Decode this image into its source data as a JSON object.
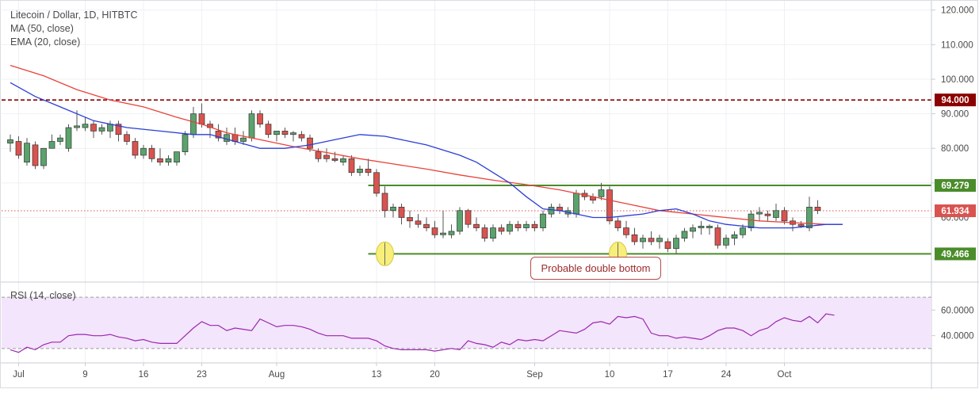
{
  "chart_data": {
    "type": "candlestick",
    "title": "Litecoin / Dollar, 1D, HITBTC",
    "indicators": [
      "MA (50, close)",
      "EMA (20, close)"
    ],
    "colors": {
      "up": "#5aa36c",
      "down": "#d9534f",
      "ma50": "#e8433a",
      "ema20": "#2a3ed6",
      "resistance_line": "#4a8c2a",
      "support_line": "#4a8c2a",
      "level_94": "#8b0000",
      "last_price": "#d9534f",
      "rsi_line": "#9c27b0",
      "rsi_band": "#f3e5fb",
      "highlight": "#f7ef7a"
    },
    "price_axis": {
      "ylim": [
        42,
        122
      ],
      "ticks": [
        120,
        110,
        100,
        90,
        80,
        70,
        60
      ],
      "tick_labels": [
        "120.000",
        "110.000",
        "100.000",
        "90.000",
        "80.000",
        "70.000",
        "60.000"
      ]
    },
    "x_axis": {
      "ticks": [
        {
          "label": "Jul",
          "day": 1
        },
        {
          "label": "9",
          "day": 9
        },
        {
          "label": "16",
          "day": 16
        },
        {
          "label": "23",
          "day": 23
        },
        {
          "label": "Aug",
          "day": 32
        },
        {
          "label": "13",
          "day": 44
        },
        {
          "label": "20",
          "day": 51
        },
        {
          "label": "Sep",
          "day": 63
        },
        {
          "label": "10",
          "day": 72
        },
        {
          "label": "17",
          "day": 79
        },
        {
          "label": "24",
          "day": 86
        },
        {
          "label": "Oct",
          "day": 93
        }
      ]
    },
    "levels": [
      {
        "value": 94.0,
        "label": "94.000",
        "style": "dashed",
        "color_key": "level_94"
      },
      {
        "value": 69.279,
        "label": "69.279",
        "style": "solid",
        "color_key": "resistance_line",
        "from_day": 43
      },
      {
        "value": 49.466,
        "label": "49.466",
        "style": "solid",
        "color_key": "support_line",
        "from_day": 43
      },
      {
        "value": 61.934,
        "label": "61.934",
        "style": "dotted",
        "color_key": "last_price"
      }
    ],
    "annotation_text": "Probable double bottom",
    "double_bottom_days": [
      45,
      73
    ],
    "candles": [
      {
        "o": 81.5,
        "h": 84,
        "l": 79,
        "c": 82.5
      },
      {
        "o": 82,
        "h": 83.5,
        "l": 77,
        "c": 78
      },
      {
        "o": 76,
        "h": 83,
        "l": 75,
        "c": 81.5
      },
      {
        "o": 81,
        "h": 82,
        "l": 74,
        "c": 75
      },
      {
        "o": 75,
        "h": 80,
        "l": 74,
        "c": 80
      },
      {
        "o": 80,
        "h": 84,
        "l": 80,
        "c": 82
      },
      {
        "o": 82,
        "h": 84,
        "l": 81,
        "c": 83
      },
      {
        "o": 80,
        "h": 87,
        "l": 79,
        "c": 86
      },
      {
        "o": 86,
        "h": 91,
        "l": 85,
        "c": 86.5
      },
      {
        "o": 86,
        "h": 89,
        "l": 85,
        "c": 87
      },
      {
        "o": 87,
        "h": 88,
        "l": 83,
        "c": 85
      },
      {
        "o": 85,
        "h": 87,
        "l": 84,
        "c": 86
      },
      {
        "o": 85,
        "h": 88,
        "l": 83,
        "c": 87
      },
      {
        "o": 87,
        "h": 88,
        "l": 82,
        "c": 84
      },
      {
        "o": 84,
        "h": 85,
        "l": 81,
        "c": 82
      },
      {
        "o": 82,
        "h": 83,
        "l": 77,
        "c": 78
      },
      {
        "o": 78,
        "h": 81,
        "l": 77,
        "c": 80
      },
      {
        "o": 80,
        "h": 81,
        "l": 76,
        "c": 77
      },
      {
        "o": 77,
        "h": 80,
        "l": 75,
        "c": 76
      },
      {
        "o": 76,
        "h": 78,
        "l": 75,
        "c": 77
      },
      {
        "o": 76,
        "h": 79,
        "l": 75,
        "c": 79
      },
      {
        "o": 79,
        "h": 85,
        "l": 78,
        "c": 84
      },
      {
        "o": 84,
        "h": 92,
        "l": 83,
        "c": 90
      },
      {
        "o": 90,
        "h": 93,
        "l": 86,
        "c": 87
      },
      {
        "o": 87,
        "h": 88,
        "l": 83,
        "c": 86
      },
      {
        "o": 85,
        "h": 87,
        "l": 82,
        "c": 83
      },
      {
        "o": 82,
        "h": 86,
        "l": 81,
        "c": 84
      },
      {
        "o": 84,
        "h": 86,
        "l": 81,
        "c": 82
      },
      {
        "o": 82,
        "h": 85,
        "l": 81,
        "c": 83
      },
      {
        "o": 83,
        "h": 91,
        "l": 82,
        "c": 90
      },
      {
        "o": 90,
        "h": 91,
        "l": 86,
        "c": 87
      },
      {
        "o": 87,
        "h": 88,
        "l": 83,
        "c": 84
      },
      {
        "o": 84,
        "h": 85,
        "l": 82,
        "c": 85
      },
      {
        "o": 85,
        "h": 86,
        "l": 83,
        "c": 84
      },
      {
        "o": 84,
        "h": 85,
        "l": 82,
        "c": 84.5
      },
      {
        "o": 84,
        "h": 85,
        "l": 82,
        "c": 83
      },
      {
        "o": 83,
        "h": 84,
        "l": 79,
        "c": 80
      },
      {
        "o": 79,
        "h": 80,
        "l": 76,
        "c": 77
      },
      {
        "o": 78,
        "h": 80,
        "l": 76,
        "c": 77
      },
      {
        "o": 77,
        "h": 79,
        "l": 76,
        "c": 76.5
      },
      {
        "o": 76,
        "h": 78,
        "l": 75,
        "c": 77
      },
      {
        "o": 77,
        "h": 78,
        "l": 72,
        "c": 73
      },
      {
        "o": 73,
        "h": 75,
        "l": 72,
        "c": 74
      },
      {
        "o": 74,
        "h": 77,
        "l": 72,
        "c": 73
      },
      {
        "o": 73,
        "h": 74,
        "l": 66,
        "c": 67
      },
      {
        "o": 67,
        "h": 69,
        "l": 60,
        "c": 62
      },
      {
        "o": 62,
        "h": 64,
        "l": 60,
        "c": 63
      },
      {
        "o": 63,
        "h": 64,
        "l": 58,
        "c": 60
      },
      {
        "o": 60,
        "h": 62,
        "l": 57,
        "c": 59
      },
      {
        "o": 59,
        "h": 61,
        "l": 57,
        "c": 58
      },
      {
        "o": 58,
        "h": 60,
        "l": 56,
        "c": 57
      },
      {
        "o": 57,
        "h": 59,
        "l": 54,
        "c": 55
      },
      {
        "o": 55,
        "h": 62,
        "l": 54,
        "c": 55.5
      },
      {
        "o": 55,
        "h": 58,
        "l": 54,
        "c": 56
      },
      {
        "o": 56,
        "h": 63,
        "l": 55,
        "c": 62
      },
      {
        "o": 62,
        "h": 62.5,
        "l": 57,
        "c": 58
      },
      {
        "o": 58,
        "h": 60,
        "l": 56,
        "c": 57
      },
      {
        "o": 57,
        "h": 58,
        "l": 53,
        "c": 54
      },
      {
        "o": 54,
        "h": 58,
        "l": 53,
        "c": 57
      },
      {
        "o": 57,
        "h": 58,
        "l": 55,
        "c": 56
      },
      {
        "o": 56,
        "h": 59,
        "l": 55,
        "c": 58
      },
      {
        "o": 58,
        "h": 59,
        "l": 56,
        "c": 57
      },
      {
        "o": 57,
        "h": 59,
        "l": 56,
        "c": 58
      },
      {
        "o": 58,
        "h": 59,
        "l": 56,
        "c": 57
      },
      {
        "o": 57,
        "h": 62,
        "l": 56,
        "c": 61
      },
      {
        "o": 61,
        "h": 64,
        "l": 60,
        "c": 63
      },
      {
        "o": 63,
        "h": 64,
        "l": 61,
        "c": 62
      },
      {
        "o": 61,
        "h": 63,
        "l": 60,
        "c": 62
      },
      {
        "o": 61,
        "h": 68,
        "l": 60,
        "c": 67
      },
      {
        "o": 67,
        "h": 68,
        "l": 65,
        "c": 66
      },
      {
        "o": 66,
        "h": 67,
        "l": 64,
        "c": 65
      },
      {
        "o": 66,
        "h": 70,
        "l": 65,
        "c": 68
      },
      {
        "o": 68,
        "h": 69,
        "l": 58,
        "c": 59
      },
      {
        "o": 59,
        "h": 60,
        "l": 56,
        "c": 57
      },
      {
        "o": 57,
        "h": 59,
        "l": 54,
        "c": 55
      },
      {
        "o": 55,
        "h": 57,
        "l": 52,
        "c": 53
      },
      {
        "o": 53,
        "h": 55,
        "l": 51,
        "c": 54
      },
      {
        "o": 54,
        "h": 56,
        "l": 52,
        "c": 53
      },
      {
        "o": 53,
        "h": 55,
        "l": 51,
        "c": 54
      },
      {
        "o": 53,
        "h": 54,
        "l": 50,
        "c": 51
      },
      {
        "o": 51,
        "h": 55,
        "l": 49.5,
        "c": 54
      },
      {
        "o": 54,
        "h": 57,
        "l": 53,
        "c": 56
      },
      {
        "o": 56,
        "h": 58,
        "l": 54,
        "c": 57
      },
      {
        "o": 57,
        "h": 59,
        "l": 55,
        "c": 57.5
      },
      {
        "o": 57,
        "h": 58,
        "l": 55,
        "c": 57.5
      },
      {
        "o": 57,
        "h": 58,
        "l": 51,
        "c": 52
      },
      {
        "o": 52,
        "h": 55,
        "l": 51,
        "c": 54
      },
      {
        "o": 54,
        "h": 56,
        "l": 52,
        "c": 55
      },
      {
        "o": 55,
        "h": 58,
        "l": 54,
        "c": 57
      },
      {
        "o": 57,
        "h": 62,
        "l": 56,
        "c": 61
      },
      {
        "o": 61,
        "h": 63,
        "l": 59,
        "c": 61.5
      },
      {
        "o": 61,
        "h": 62,
        "l": 59,
        "c": 60.5
      },
      {
        "o": 60,
        "h": 64,
        "l": 59,
        "c": 62
      },
      {
        "o": 62,
        "h": 63,
        "l": 58,
        "c": 59
      },
      {
        "o": 59,
        "h": 60,
        "l": 56,
        "c": 58
      },
      {
        "o": 58,
        "h": 59,
        "l": 57,
        "c": 57.5
      },
      {
        "o": 57,
        "h": 66,
        "l": 56,
        "c": 63
      },
      {
        "o": 63,
        "h": 65,
        "l": 61,
        "c": 62
      }
    ],
    "ma50": [
      [
        0,
        104
      ],
      [
        4,
        101
      ],
      [
        8,
        97
      ],
      [
        12,
        94
      ],
      [
        16,
        92
      ],
      [
        20,
        89
      ],
      [
        23,
        87
      ],
      [
        26,
        84.5
      ],
      [
        30,
        82.5
      ],
      [
        34,
        80.5
      ],
      [
        38,
        78.8
      ],
      [
        42,
        77
      ],
      [
        46,
        75.5
      ],
      [
        50,
        74
      ],
      [
        54,
        72.3
      ],
      [
        58,
        70.8
      ],
      [
        62,
        69.5
      ],
      [
        66,
        68
      ],
      [
        70,
        66
      ],
      [
        74,
        64
      ],
      [
        78,
        62
      ],
      [
        82,
        61
      ],
      [
        86,
        60
      ],
      [
        90,
        59
      ],
      [
        94,
        58.5
      ],
      [
        98,
        58
      ],
      [
        100,
        58
      ]
    ],
    "ema20": [
      [
        0,
        99
      ],
      [
        3,
        95
      ],
      [
        6,
        92
      ],
      [
        10,
        88
      ],
      [
        14,
        86
      ],
      [
        18,
        85
      ],
      [
        22,
        84
      ],
      [
        24,
        84
      ],
      [
        27,
        82
      ],
      [
        30,
        80
      ],
      [
        33,
        80
      ],
      [
        36,
        81
      ],
      [
        39,
        82.5
      ],
      [
        42,
        84
      ],
      [
        45,
        83.5
      ],
      [
        48,
        82
      ],
      [
        50,
        81
      ],
      [
        52,
        79.5
      ],
      [
        54,
        78
      ],
      [
        56,
        76
      ],
      [
        58,
        73
      ],
      [
        60,
        70
      ],
      [
        62,
        66
      ],
      [
        64,
        62.5
      ],
      [
        66,
        62
      ],
      [
        68,
        61
      ],
      [
        70,
        60
      ],
      [
        72,
        60
      ],
      [
        74,
        60.5
      ],
      [
        76,
        61
      ],
      [
        78,
        62
      ],
      [
        80,
        62.5
      ],
      [
        82,
        61
      ],
      [
        84,
        59
      ],
      [
        86,
        58
      ],
      [
        88,
        57.5
      ],
      [
        90,
        57
      ],
      [
        92,
        57
      ],
      [
        94,
        57
      ],
      [
        96,
        57.5
      ],
      [
        98,
        58
      ],
      [
        100,
        58
      ]
    ],
    "rsi": {
      "title": "RSI (14, close)",
      "ylim": [
        20,
        80
      ],
      "ticks": [
        60,
        40
      ],
      "tick_labels": [
        "60.0000",
        "40.0000"
      ],
      "band": [
        30,
        70
      ],
      "values": [
        [
          0,
          29
        ],
        [
          1,
          27
        ],
        [
          2,
          31
        ],
        [
          3,
          29
        ],
        [
          4,
          33
        ],
        [
          5,
          35
        ],
        [
          6,
          35
        ],
        [
          7,
          40
        ],
        [
          8,
          41
        ],
        [
          9,
          41
        ],
        [
          10,
          40
        ],
        [
          11,
          40
        ],
        [
          12,
          41
        ],
        [
          13,
          39
        ],
        [
          14,
          38
        ],
        [
          15,
          36
        ],
        [
          16,
          37
        ],
        [
          17,
          35
        ],
        [
          18,
          34
        ],
        [
          19,
          34
        ],
        [
          20,
          34
        ],
        [
          21,
          40
        ],
        [
          22,
          46
        ],
        [
          23,
          51
        ],
        [
          24,
          48
        ],
        [
          25,
          48
        ],
        [
          26,
          44
        ],
        [
          27,
          46
        ],
        [
          28,
          45
        ],
        [
          29,
          44
        ],
        [
          30,
          53
        ],
        [
          31,
          50
        ],
        [
          32,
          47
        ],
        [
          33,
          48
        ],
        [
          34,
          48
        ],
        [
          35,
          47
        ],
        [
          36,
          45
        ],
        [
          37,
          42
        ],
        [
          38,
          40
        ],
        [
          39,
          40
        ],
        [
          40,
          40
        ],
        [
          41,
          38
        ],
        [
          42,
          38
        ],
        [
          43,
          38
        ],
        [
          44,
          36
        ],
        [
          45,
          32
        ],
        [
          46,
          30
        ],
        [
          47,
          29
        ],
        [
          48,
          29
        ],
        [
          49,
          29
        ],
        [
          50,
          29
        ],
        [
          51,
          28
        ],
        [
          52,
          29
        ],
        [
          53,
          30
        ],
        [
          54,
          29
        ],
        [
          55,
          36
        ],
        [
          56,
          34
        ],
        [
          57,
          33
        ],
        [
          58,
          31
        ],
        [
          59,
          35
        ],
        [
          60,
          33
        ],
        [
          61,
          37
        ],
        [
          62,
          36
        ],
        [
          63,
          37
        ],
        [
          64,
          36
        ],
        [
          65,
          40
        ],
        [
          66,
          44
        ],
        [
          67,
          43
        ],
        [
          68,
          42
        ],
        [
          69,
          45
        ],
        [
          70,
          50
        ],
        [
          71,
          51
        ],
        [
          72,
          49
        ],
        [
          73,
          55
        ],
        [
          74,
          54
        ],
        [
          75,
          55
        ],
        [
          76,
          53
        ],
        [
          77,
          42
        ],
        [
          78,
          40
        ],
        [
          79,
          40
        ],
        [
          80,
          38
        ],
        [
          81,
          39
        ],
        [
          82,
          38
        ],
        [
          83,
          37
        ],
        [
          84,
          40
        ],
        [
          85,
          44
        ],
        [
          86,
          46
        ],
        [
          87,
          46
        ],
        [
          88,
          44
        ],
        [
          89,
          40
        ],
        [
          90,
          44
        ],
        [
          91,
          46
        ],
        [
          92,
          51
        ],
        [
          93,
          54
        ],
        [
          94,
          52
        ],
        [
          95,
          51
        ],
        [
          96,
          55
        ],
        [
          97,
          50
        ],
        [
          98,
          57
        ],
        [
          99,
          56
        ]
      ]
    }
  }
}
